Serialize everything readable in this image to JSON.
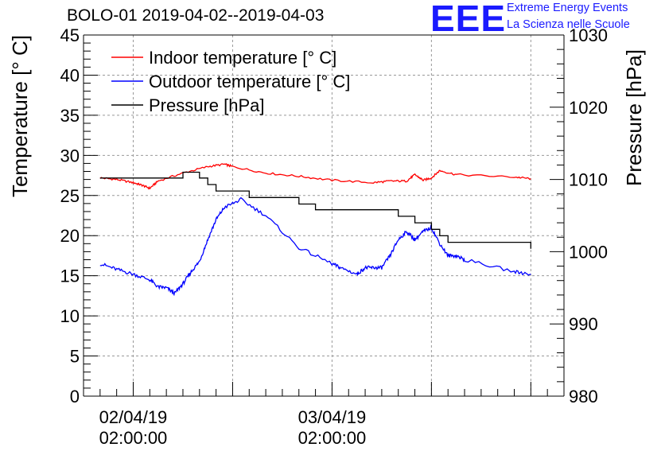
{
  "header": {
    "title": "BOLO-01 2019-04-02--2019-04-03",
    "logo_text": "EEE",
    "logo_line1": "Extreme Energy Events",
    "logo_line2": "La Scienza nelle Scuole"
  },
  "colors": {
    "indoor": "#ff0000",
    "outdoor": "#0000ff",
    "pressure": "#000000",
    "logo": "#1a1aff",
    "grid": "#999999"
  },
  "chart_data": {
    "type": "line",
    "title": "BOLO-01 2019-04-02--2019-04-03",
    "ylabel": "Temperature [° C]",
    "y2label": "Pressure [hPa]",
    "ylim": [
      0,
      45
    ],
    "y2lim": [
      980,
      1030
    ],
    "yticks": [
      "0",
      "5",
      "10",
      "15",
      "20",
      "25",
      "30",
      "35",
      "40",
      "45"
    ],
    "y2ticks": [
      "980",
      "990",
      "1000",
      "1010",
      "1020",
      "1030"
    ],
    "xlim": [
      "2019-04-01 20:00",
      "2019-04-04 06:00"
    ],
    "xticks": [
      {
        "date": "02/04/19",
        "time": "02:00:00",
        "x": "2019-04-02 02:00"
      },
      {
        "date": "03/04/19",
        "time": "02:00:00",
        "x": "2019-04-03 02:00"
      }
    ],
    "grid": true,
    "legend_position": "top-left",
    "series": [
      {
        "name": "Indoor temperature [° C]",
        "axis": "left",
        "x": [
          "2019-04-01 22:00",
          "2019-04-02 00:00",
          "2019-04-02 02:00",
          "2019-04-02 03:00",
          "2019-04-02 04:00",
          "2019-04-02 05:00",
          "2019-04-02 08:00",
          "2019-04-02 11:00",
          "2019-04-02 13:00",
          "2019-04-02 14:00",
          "2019-04-02 18:00",
          "2019-04-02 22:00",
          "2019-04-03 02:00",
          "2019-04-03 07:00",
          "2019-04-03 09:00",
          "2019-04-03 11:00",
          "2019-04-03 12:00",
          "2019-04-03 13:00",
          "2019-04-03 14:00",
          "2019-04-03 15:00",
          "2019-04-03 17:00",
          "2019-04-04 00:00",
          "2019-04-04 02:00"
        ],
        "values": [
          27.2,
          27.0,
          26.6,
          26.3,
          25.9,
          26.8,
          27.8,
          28.6,
          28.9,
          28.6,
          27.8,
          27.4,
          26.9,
          26.6,
          26.8,
          26.8,
          27.6,
          26.9,
          27.2,
          28.1,
          27.6,
          27.3,
          27.1
        ]
      },
      {
        "name": "Outdoor temperature [° C]",
        "axis": "left",
        "x": [
          "2019-04-01 22:00",
          "2019-04-02 00:00",
          "2019-04-02 02:00",
          "2019-04-02 04:00",
          "2019-04-02 05:00",
          "2019-04-02 06:00",
          "2019-04-02 07:00",
          "2019-04-02 08:00",
          "2019-04-02 09:00",
          "2019-04-02 10:00",
          "2019-04-02 11:00",
          "2019-04-02 12:00",
          "2019-04-02 13:00",
          "2019-04-02 15:00",
          "2019-04-02 18:00",
          "2019-04-02 22:00",
          "2019-04-03 02:00",
          "2019-04-03 03:00",
          "2019-04-03 05:00",
          "2019-04-03 06:00",
          "2019-04-03 07:00",
          "2019-04-03 08:00",
          "2019-04-03 09:00",
          "2019-04-03 10:00",
          "2019-04-03 11:00",
          "2019-04-03 12:00",
          "2019-04-03 13:00",
          "2019-04-03 14:00",
          "2019-04-03 15:00",
          "2019-04-03 16:00",
          "2019-04-03 17:00",
          "2019-04-03 18:00",
          "2019-04-04 00:00",
          "2019-04-04 02:00"
        ],
        "values": [
          16.5,
          15.8,
          15.2,
          14.5,
          13.6,
          13.5,
          12.8,
          14.0,
          15.5,
          16.8,
          19.5,
          22.0,
          23.5,
          24.5,
          22.5,
          18.5,
          16.5,
          16.0,
          15.2,
          16.0,
          16.0,
          16.0,
          17.5,
          19.5,
          20.5,
          19.5,
          20.5,
          21.0,
          19.0,
          17.5,
          17.5,
          17.0,
          15.5,
          15.2
        ]
      },
      {
        "name": "Pressure [hPa]",
        "axis": "right",
        "x": [
          "2019-04-01 22:00",
          "2019-04-02 06:00",
          "2019-04-02 08:00",
          "2019-04-02 10:00",
          "2019-04-02 11:00",
          "2019-04-02 12:00",
          "2019-04-02 16:00",
          "2019-04-02 21:00",
          "2019-04-02 22:00",
          "2019-04-02 23:00",
          "2019-04-03 00:00",
          "2019-04-03 07:00",
          "2019-04-03 10:00",
          "2019-04-03 12:00",
          "2019-04-03 14:00",
          "2019-04-03 15:00",
          "2019-04-03 16:00",
          "2019-04-04 00:00",
          "2019-04-04 02:00"
        ],
        "values": [
          1010.2,
          1010.2,
          1011.0,
          1010.2,
          1009.3,
          1008.4,
          1007.5,
          1007.5,
          1006.6,
          1006.6,
          1005.8,
          1005.8,
          1004.9,
          1004.0,
          1003.1,
          1002.2,
          1001.3,
          1001.3,
          1000.4
        ]
      }
    ]
  }
}
